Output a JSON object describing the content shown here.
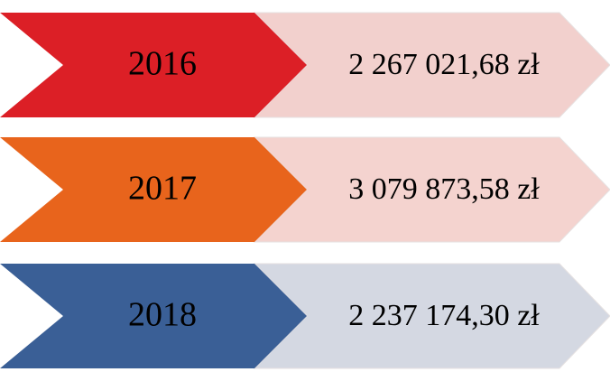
{
  "rows": [
    {
      "year": "2016",
      "amount": "2 267 021,68 zł",
      "color": "#dc1f26",
      "light": "#f2d0cd"
    },
    {
      "year": "2017",
      "amount": "3 079 873,58 zł",
      "color": "#e8641c",
      "light": "#f4d3cf"
    },
    {
      "year": "2018",
      "amount": "2 237 174,30 zł",
      "color": "#3a5f96",
      "light": "#d4d8e2"
    }
  ]
}
